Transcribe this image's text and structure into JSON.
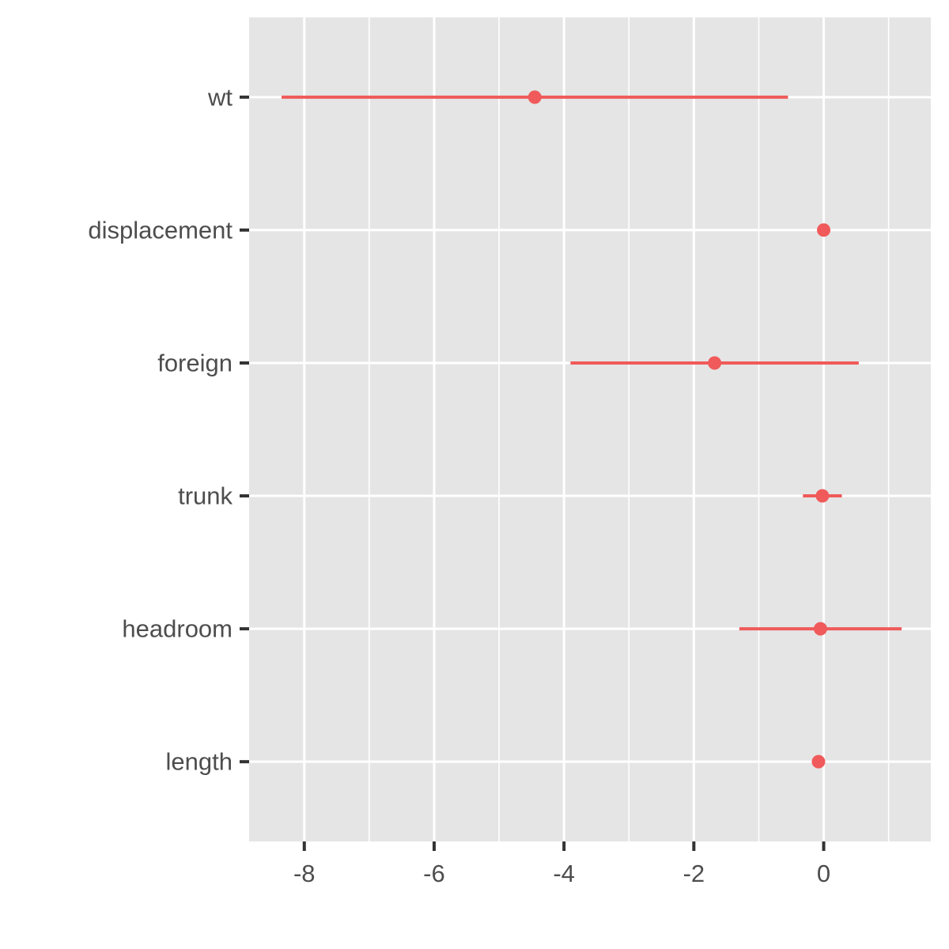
{
  "chart_data": {
    "type": "coefficient-plot",
    "orientation": "horizontal",
    "title": "",
    "xlabel": "",
    "ylabel": "",
    "xlim": [
      -8.85,
      1.65
    ],
    "x_ticks": [
      -8,
      -6,
      -4,
      -2,
      0
    ],
    "x_tick_labels": [
      "-8",
      "-6",
      "-4",
      "-2",
      "0"
    ],
    "x_minor_ticks": [
      -7,
      -5,
      -3,
      -1,
      1
    ],
    "grid": true,
    "legend": "none",
    "colors": {
      "panel_background": "#e5e5e5",
      "grid": "#ffffff",
      "series": "#f05a5a",
      "tick_text": "#4d4d4d",
      "tick_mark": "#333333"
    },
    "series": [
      {
        "points": [
          {
            "term": "wt",
            "estimate": -4.45,
            "conf_low": -8.35,
            "conf_high": -0.55
          },
          {
            "term": "displacement",
            "estimate": 0.0,
            "conf_low": 0.0,
            "conf_high": 0.0
          },
          {
            "term": "foreign",
            "estimate": -1.68,
            "conf_low": -3.9,
            "conf_high": 0.54
          },
          {
            "term": "trunk",
            "estimate": -0.02,
            "conf_low": -0.32,
            "conf_high": 0.28
          },
          {
            "term": "headroom",
            "estimate": -0.05,
            "conf_low": -1.3,
            "conf_high": 1.2
          },
          {
            "term": "length",
            "estimate": -0.08,
            "conf_low": -0.15,
            "conf_high": 0.0
          }
        ]
      }
    ]
  }
}
